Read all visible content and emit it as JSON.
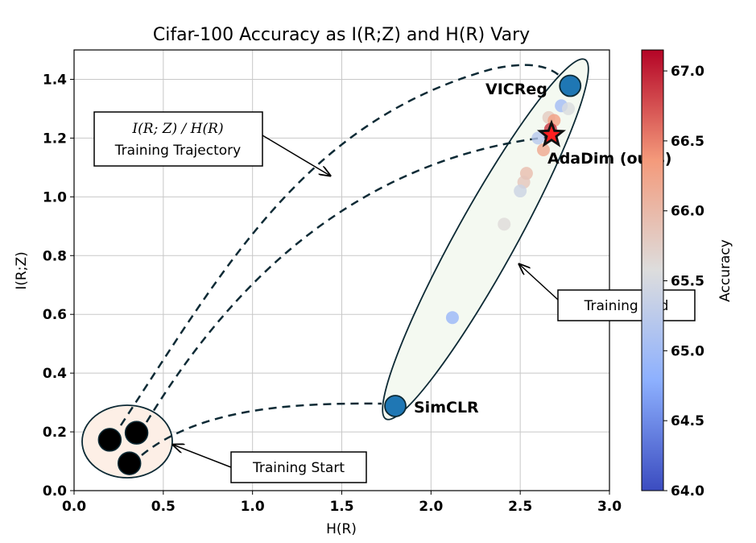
{
  "chart_data": {
    "type": "scatter",
    "title": "Cifar-100 Accuracy as I(R;Z) and H(R) Vary",
    "xlabel": "H(R)",
    "ylabel": "I(R;Z)",
    "xlim": [
      0.0,
      3.0
    ],
    "ylim": [
      0.0,
      1.5
    ],
    "xticks": [
      "0.0",
      "0.5",
      "1.0",
      "1.5",
      "2.0",
      "2.5",
      "3.0"
    ],
    "yticks": [
      "0.0",
      "0.2",
      "0.4",
      "0.6",
      "0.8",
      "1.0",
      "1.2",
      "1.4"
    ],
    "grid": true,
    "colorbar": {
      "label": "Accuracy",
      "range": [
        64.0,
        67.15
      ],
      "ticks": [
        "64.0",
        "64.5",
        "65.0",
        "65.5",
        "66.0",
        "66.5",
        "67.0"
      ],
      "colormap": "coolwarm",
      "low_color": "#3b4cc0",
      "mid_color": "#dddddd",
      "high_color": "#b40426"
    },
    "points": [
      {
        "x": 2.73,
        "y": 1.31,
        "acc": 65.0
      },
      {
        "x": 2.77,
        "y": 1.3,
        "acc": 65.55
      },
      {
        "x": 2.66,
        "y": 1.27,
        "acc": 65.8
      },
      {
        "x": 2.69,
        "y": 1.26,
        "acc": 66.3
      },
      {
        "x": 2.67,
        "y": 1.23,
        "acc": 66.9
      },
      {
        "x": 2.6,
        "y": 1.2,
        "acc": 65.2
      },
      {
        "x": 2.63,
        "y": 1.16,
        "acc": 66.2
      },
      {
        "x": 2.535,
        "y": 1.08,
        "acc": 65.95
      },
      {
        "x": 2.52,
        "y": 1.05,
        "acc": 65.85
      },
      {
        "x": 2.5,
        "y": 1.02,
        "acc": 65.4
      },
      {
        "x": 2.41,
        "y": 0.907,
        "acc": 65.6
      },
      {
        "x": 2.12,
        "y": 0.589,
        "acc": 64.9
      }
    ],
    "named_points": [
      {
        "name": "VICReg",
        "x": 2.78,
        "y": 1.378,
        "color": "#1f77b4"
      },
      {
        "name": "SimCLR",
        "x": 1.8,
        "y": 0.288,
        "color": "#1f77b4"
      }
    ],
    "adadim": {
      "name": "AdaDim (ours)",
      "x": 2.675,
      "y": 1.211,
      "color": "#ff2020"
    },
    "start_points": [
      {
        "x": 0.2,
        "y": 0.173
      },
      {
        "x": 0.35,
        "y": 0.197
      },
      {
        "x": 0.31,
        "y": 0.093
      }
    ],
    "annotations": {
      "trajectory_math": "I(R; Z) / H(R)",
      "trajectory": "Training Trajectory",
      "end": "Training End",
      "start": "Training Start"
    }
  }
}
